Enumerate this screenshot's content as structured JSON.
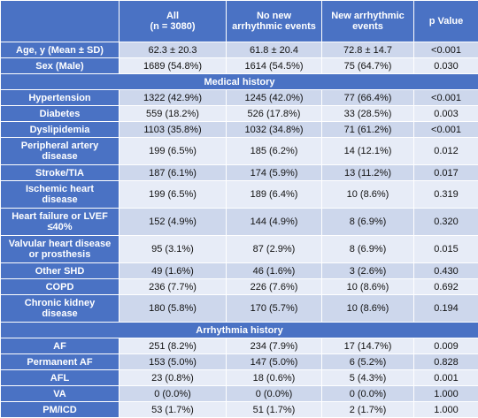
{
  "table": {
    "headers": [
      "",
      "All\n(n = 3080)",
      "No new\narrhythmic events",
      "New arrhythmic\nevents",
      "p Value"
    ],
    "rows": [
      {
        "label": "Age, y (Mean ± SD)",
        "values": [
          "62.3 ± 20.3",
          "61.8 ± 20.4",
          "72.8 ± 14.7",
          "<0.001"
        ]
      },
      {
        "label": "Sex (Male)",
        "values": [
          "1689 (54.8%)",
          "1614 (54.5%)",
          "75 (64.7%)",
          "0.030"
        ]
      },
      {
        "section": "Medical history"
      },
      {
        "label": "Hypertension",
        "values": [
          "1322 (42.9%)",
          "1245 (42.0%)",
          "77 (66.4%)",
          "<0.001"
        ]
      },
      {
        "label": "Diabetes",
        "values": [
          "559 (18.2%)",
          "526 (17.8%)",
          "33 (28.5%)",
          "0.003"
        ]
      },
      {
        "label": "Dyslipidemia",
        "values": [
          "1103 (35.8%)",
          "1032 (34.8%)",
          "71 (61.2%)",
          "<0.001"
        ]
      },
      {
        "label": "Peripheral artery\ndisease",
        "values": [
          "199 (6.5%)",
          "185 (6.2%)",
          "14 (12.1%)",
          "0.012"
        ]
      },
      {
        "label": "Stroke/TIA",
        "values": [
          "187 (6.1%)",
          "174 (5.9%)",
          "13 (11.2%)",
          "0.017"
        ]
      },
      {
        "label": "Ischemic heart\ndisease",
        "values": [
          "199 (6.5%)",
          "189 (6.4%)",
          "10 (8.6%)",
          "0.319"
        ]
      },
      {
        "label": "Heart failure or LVEF\n≤40%",
        "values": [
          "152 (4.9%)",
          "144 (4.9%)",
          "8 (6.9%)",
          "0.320"
        ]
      },
      {
        "label": "Valvular heart disease\nor prosthesis",
        "values": [
          "95 (3.1%)",
          "87 (2.9%)",
          "8 (6.9%)",
          "0.015"
        ]
      },
      {
        "label": "Other SHD",
        "values": [
          "49 (1.6%)",
          "46 (1.6%)",
          "3 (2.6%)",
          "0.430"
        ]
      },
      {
        "label": "COPD",
        "values": [
          "236 (7.7%)",
          "226 (7.6%)",
          "10 (8.6%)",
          "0.692"
        ]
      },
      {
        "label": "Chronic kidney\ndisease",
        "values": [
          "180 (5.8%)",
          "170 (5.7%)",
          "10 (8.6%)",
          "0.194"
        ]
      },
      {
        "section": "Arrhythmia history"
      },
      {
        "label": "AF",
        "values": [
          "251 (8.2%)",
          "234 (7.9%)",
          "17 (14.7%)",
          "0.009"
        ]
      },
      {
        "label": "Permanent AF",
        "values": [
          "153 (5.0%)",
          "147 (5.0%)",
          "6 (5.2%)",
          "0.828"
        ]
      },
      {
        "label": "AFL",
        "values": [
          "23 (0.8%)",
          "18 (0.6%)",
          "5 (4.3%)",
          "0.001"
        ]
      },
      {
        "label": "VA",
        "values": [
          "0 (0.0%)",
          "0 (0.0%)",
          "0 (0.0%)",
          "1.000"
        ]
      },
      {
        "label": "PM/ICD",
        "values": [
          "53 (1.7%)",
          "51 (1.7%)",
          "2 (1.7%)",
          "1.000"
        ]
      }
    ]
  }
}
